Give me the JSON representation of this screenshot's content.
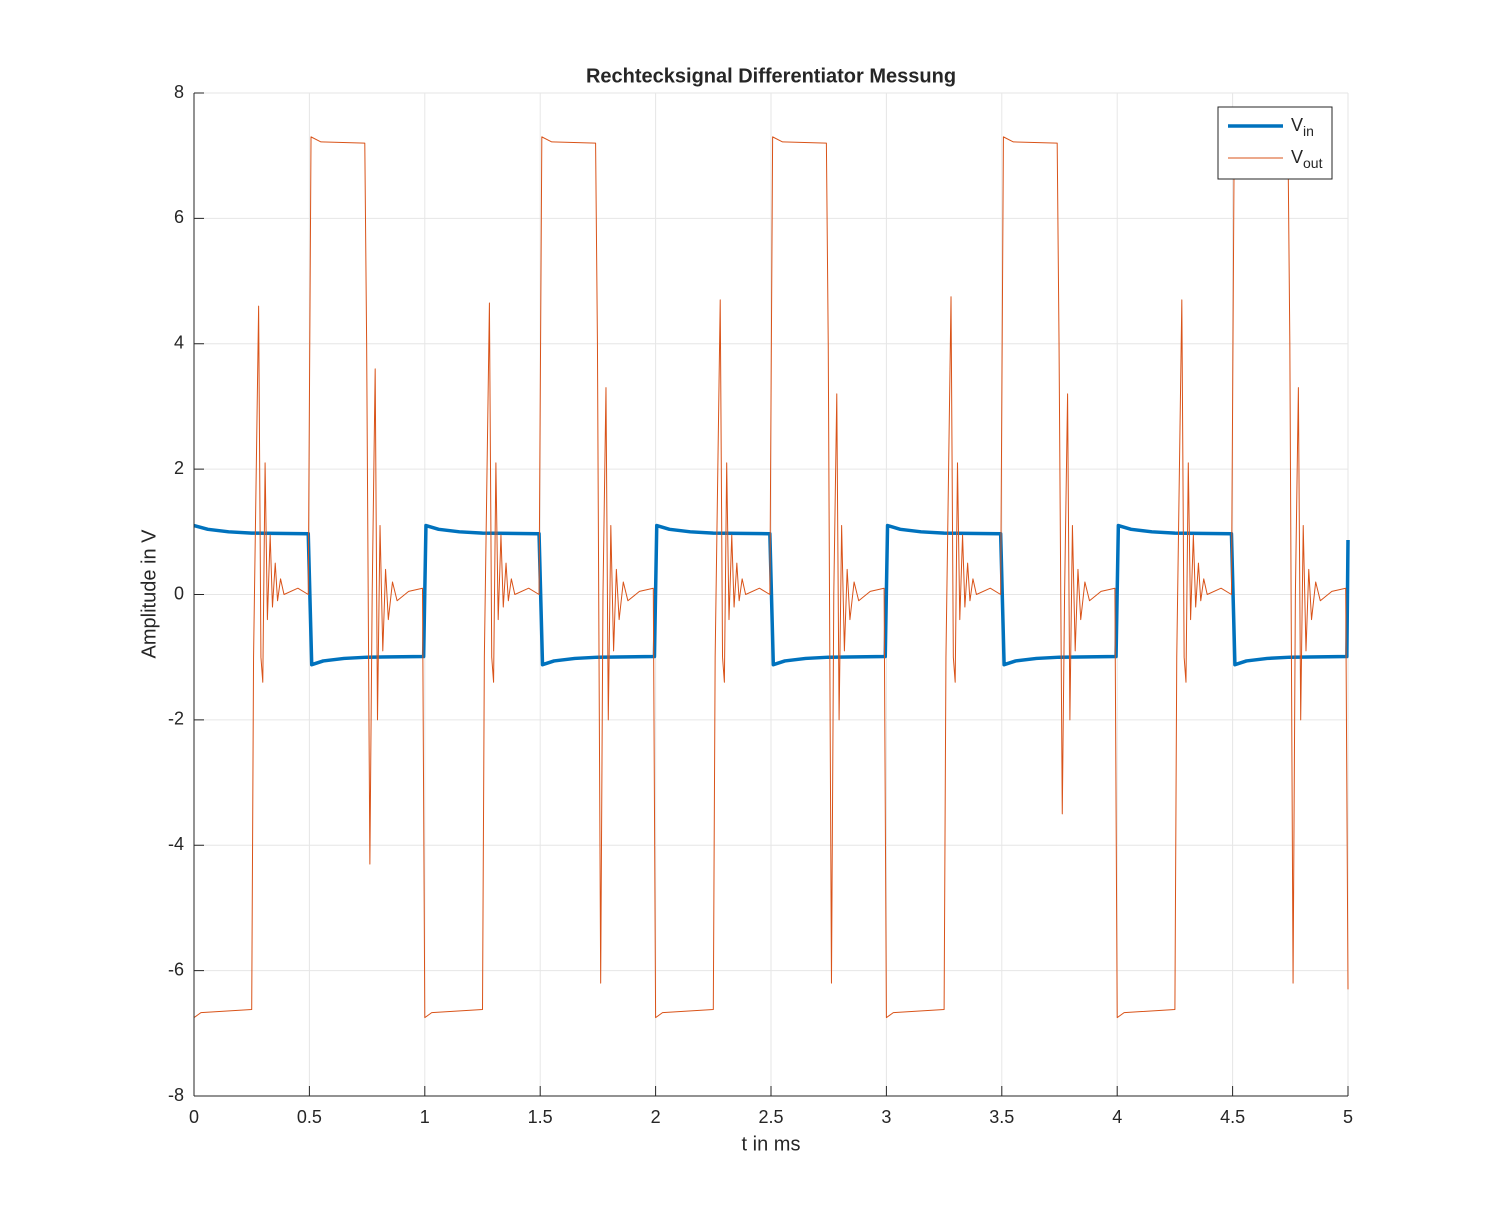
{
  "chart_data": {
    "type": "line",
    "title": "Rechtecksignal Differentiator Messung",
    "x_label": "t in ms",
    "y_label": "Amplitude in V",
    "xlim": [
      0,
      5
    ],
    "ylim": [
      -8,
      8
    ],
    "xticks": [
      0,
      0.5,
      1,
      1.5,
      2,
      2.5,
      3,
      3.5,
      4,
      4.5,
      5
    ],
    "yticks": [
      -8,
      -6,
      -4,
      -2,
      0,
      2,
      4,
      6,
      8
    ],
    "grid": true,
    "legend": "top-right",
    "series": [
      {
        "name": "Vin",
        "color": "#0072BD",
        "x": [
          0,
          0.06,
          0.15,
          0.25,
          0.495,
          0.51,
          0.56,
          0.65,
          0.75,
          0.995,
          1.005,
          1.06,
          1.15,
          1.25,
          1.495,
          1.51,
          1.56,
          1.65,
          1.75,
          1.995,
          2.005,
          2.06,
          2.15,
          2.25,
          2.495,
          2.51,
          2.56,
          2.65,
          2.75,
          2.995,
          3.005,
          3.06,
          3.15,
          3.25,
          3.495,
          3.51,
          3.56,
          3.65,
          3.75,
          3.995,
          4.005,
          4.06,
          4.15,
          4.25,
          4.495,
          4.51,
          4.56,
          4.65,
          4.75,
          4.995,
          5
        ],
        "values": [
          1.1,
          1.04,
          1.0,
          0.98,
          0.97,
          -1.12,
          -1.06,
          -1.02,
          -1.0,
          -0.99,
          1.1,
          1.04,
          1.0,
          0.98,
          0.97,
          -1.12,
          -1.06,
          -1.02,
          -1.0,
          -0.99,
          1.1,
          1.04,
          1.0,
          0.98,
          0.97,
          -1.12,
          -1.06,
          -1.02,
          -1.0,
          -0.99,
          1.1,
          1.04,
          1.0,
          0.98,
          0.97,
          -1.12,
          -1.06,
          -1.02,
          -1.0,
          -0.99,
          1.1,
          1.04,
          1.0,
          0.98,
          0.97,
          -1.12,
          -1.06,
          -1.02,
          -1.0,
          -0.99,
          0.87
        ]
      },
      {
        "name": "Vout",
        "color": "#D95319",
        "x": [
          0,
          0.03,
          0.25,
          0.258,
          0.28,
          0.29,
          0.298,
          0.308,
          0.318,
          0.33,
          0.34,
          0.352,
          0.362,
          0.375,
          0.39,
          0.45,
          0.495,
          0.507,
          0.55,
          0.74,
          0.748,
          0.762,
          0.772,
          0.785,
          0.795,
          0.806,
          0.818,
          0.83,
          0.842,
          0.86,
          0.88,
          0.93,
          0.99,
          1,
          1.03,
          1.25,
          1.258,
          1.28,
          1.29,
          1.298,
          1.308,
          1.318,
          1.33,
          1.34,
          1.352,
          1.362,
          1.375,
          1.39,
          1.45,
          1.495,
          1.507,
          1.55,
          1.74,
          1.748,
          1.762,
          1.772,
          1.785,
          1.795,
          1.806,
          1.818,
          1.83,
          1.842,
          1.86,
          1.88,
          1.93,
          1.99,
          2,
          2.03,
          2.25,
          2.258,
          2.28,
          2.29,
          2.298,
          2.308,
          2.318,
          2.33,
          2.34,
          2.352,
          2.362,
          2.375,
          2.39,
          2.45,
          2.495,
          2.507,
          2.55,
          2.74,
          2.748,
          2.762,
          2.772,
          2.785,
          2.795,
          2.806,
          2.818,
          2.83,
          2.842,
          2.86,
          2.88,
          2.93,
          2.99,
          3,
          3.03,
          3.25,
          3.258,
          3.28,
          3.29,
          3.298,
          3.308,
          3.318,
          3.33,
          3.34,
          3.352,
          3.362,
          3.375,
          3.39,
          3.45,
          3.495,
          3.507,
          3.55,
          3.74,
          3.748,
          3.762,
          3.772,
          3.785,
          3.795,
          3.806,
          3.818,
          3.83,
          3.842,
          3.86,
          3.88,
          3.93,
          3.99,
          4,
          4.03,
          4.25,
          4.258,
          4.28,
          4.29,
          4.298,
          4.308,
          4.318,
          4.33,
          4.34,
          4.352,
          4.362,
          4.375,
          4.39,
          4.45,
          4.495,
          4.507,
          4.55,
          4.74,
          4.748,
          4.762,
          4.772,
          4.785,
          4.795,
          4.806,
          4.818,
          4.83,
          4.842,
          4.86,
          4.88,
          4.93,
          4.99,
          5
        ],
        "values": [
          -6.75,
          -6.67,
          -6.62,
          -1,
          4.6,
          -1,
          -1.4,
          2.1,
          -0.4,
          0.95,
          -0.2,
          0.5,
          -0.1,
          0.25,
          0,
          0.1,
          0,
          7.3,
          7.22,
          7.2,
          4,
          -4.3,
          0,
          3.6,
          -2,
          1.1,
          -0.9,
          0.4,
          -0.4,
          0.2,
          -0.1,
          0.05,
          0.1,
          -6.75,
          -6.67,
          -6.62,
          -1,
          4.65,
          -1,
          -1.4,
          2.1,
          -0.4,
          0.95,
          -0.2,
          0.5,
          -0.1,
          0.25,
          0,
          0.1,
          0,
          7.3,
          7.22,
          7.2,
          4,
          -6.2,
          0,
          3.3,
          -2,
          1.1,
          -0.9,
          0.4,
          -0.4,
          0.2,
          -0.1,
          0.05,
          0.1,
          -6.75,
          -6.67,
          -6.62,
          -1,
          4.7,
          -1,
          -1.4,
          2.1,
          -0.4,
          0.95,
          -0.2,
          0.5,
          -0.1,
          0.25,
          0,
          0.1,
          0,
          7.3,
          7.22,
          7.2,
          4,
          -6.2,
          0,
          3.2,
          -2,
          1.1,
          -0.9,
          0.4,
          -0.4,
          0.2,
          -0.1,
          0.05,
          0.1,
          -6.75,
          -6.67,
          -6.62,
          -1,
          4.75,
          -1,
          -1.4,
          2.1,
          -0.4,
          0.95,
          -0.2,
          0.5,
          -0.1,
          0.25,
          0,
          0.1,
          0,
          7.3,
          7.22,
          7.2,
          4,
          -3.5,
          0,
          3.2,
          -2,
          1.1,
          -0.9,
          0.4,
          -0.4,
          0.2,
          -0.1,
          0.05,
          0.1,
          -6.75,
          -6.67,
          -6.62,
          -1,
          4.7,
          -1,
          -1.4,
          2.1,
          -0.4,
          0.95,
          -0.2,
          0.5,
          -0.1,
          0.25,
          0,
          0.1,
          0,
          7.3,
          7.22,
          7.2,
          4,
          -6.2,
          0,
          3.3,
          -2,
          1.1,
          -0.9,
          0.4,
          -0.4,
          0.2,
          -0.1,
          0.05,
          0.1,
          -6.3
        ]
      }
    ]
  }
}
